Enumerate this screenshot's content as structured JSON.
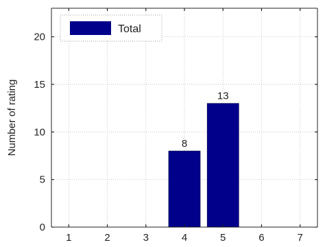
{
  "chart_data": {
    "type": "bar",
    "ylabel": "Number of rating",
    "xlabel": "",
    "title": "",
    "x_ticks": [
      "1",
      "2",
      "3",
      "4",
      "5",
      "6",
      "7"
    ],
    "y_ticks": [
      "0",
      "5",
      "10",
      "15",
      "20"
    ],
    "xlim": [
      0.55,
      7.45
    ],
    "ylim": [
      0,
      23
    ],
    "grid": true,
    "legend_position": "top-left",
    "series": [
      {
        "name": "Total",
        "color": "#00008b",
        "points": [
          {
            "x": 4,
            "value": 8,
            "label": "8"
          },
          {
            "x": 5,
            "value": 13,
            "label": "13"
          }
        ]
      }
    ]
  }
}
